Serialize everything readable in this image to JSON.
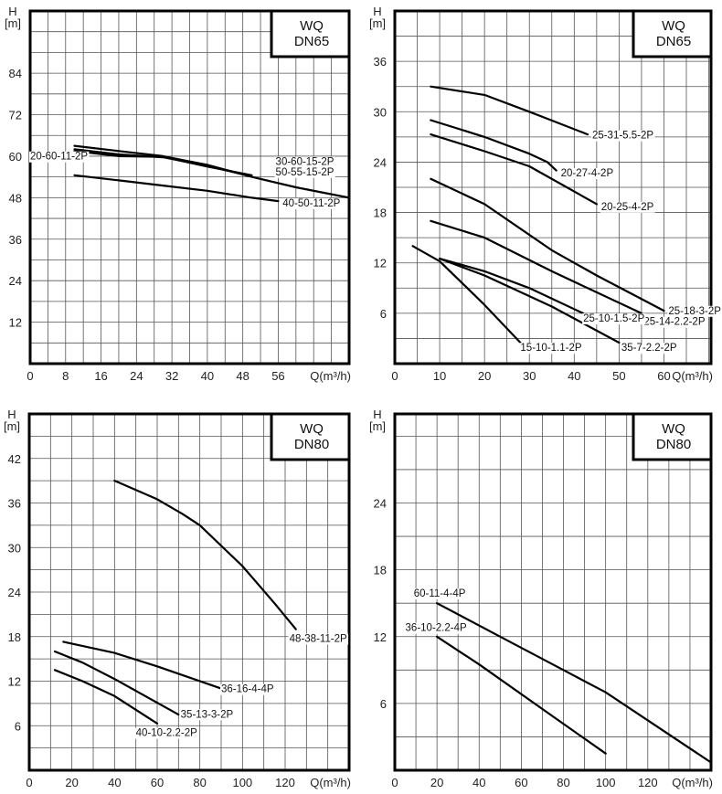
{
  "chart_data": [
    {
      "type": "line",
      "title": [
        "WQ",
        "DN65"
      ],
      "xlabel": "Q(m³/h)",
      "ylabel": [
        "H",
        "[m]"
      ],
      "xlim": [
        0,
        72
      ],
      "ylim": [
        0,
        102
      ],
      "x_grid_step": 4,
      "y_grid_step": 6,
      "xticks": [
        0,
        8,
        16,
        24,
        32,
        40,
        48,
        56
      ],
      "yticks": [
        12,
        24,
        36,
        48,
        60,
        72,
        84
      ],
      "grid": true,
      "series": [
        {
          "name": "30-60-15-2P",
          "points": [
            [
              10,
              63
            ],
            [
              20,
              61.5
            ],
            [
              30,
              60
            ],
            [
              40,
              57.5
            ],
            [
              50,
              54
            ],
            [
              60,
              51
            ],
            [
              72,
              48
            ]
          ],
          "label_at": [
            62,
            57.5
          ],
          "label_anchor": "middle"
        },
        {
          "name": "50-55-15-2P",
          "points": [
            [
              10,
              62
            ],
            [
              20,
              60.5
            ],
            [
              30,
              59.7
            ],
            [
              40,
              57.2
            ],
            [
              49.5,
              54.3
            ]
          ],
          "label_at": [
            62,
            54.5
          ],
          "label_anchor": "middle"
        },
        {
          "name": "20-60-11-2P",
          "points": [
            [
              10,
              61.5
            ],
            [
              20,
              60
            ],
            [
              30,
              59.8
            ],
            [
              40,
              57
            ],
            [
              50,
              54.5
            ]
          ],
          "label_at": [
            0,
            59
          ],
          "label_anchor": "start"
        },
        {
          "name": "40-50-11-2P",
          "points": [
            [
              10,
              54.5
            ],
            [
              20,
              53
            ],
            [
              30,
              51.5
            ],
            [
              40,
              50
            ],
            [
              50,
              48
            ],
            [
              56,
              47
            ]
          ],
          "label_at": [
            57,
            45.5
          ],
          "label_anchor": "start"
        }
      ]
    },
    {
      "type": "line",
      "title": [
        "WQ",
        "DN65"
      ],
      "xlabel": "Q(m³/h)",
      "ylabel": [
        "H",
        "[m]"
      ],
      "xlim": [
        0,
        70.5
      ],
      "ylim": [
        0,
        42
      ],
      "x_grid_step": 5,
      "y_grid_step": 3,
      "xticks": [
        0,
        10,
        20,
        30,
        40,
        50,
        60
      ],
      "yticks": [
        6,
        12,
        18,
        24,
        30,
        36
      ],
      "grid": true,
      "series": [
        {
          "name": "25-31-5.5-2P",
          "points": [
            [
              8,
              33
            ],
            [
              20,
              32
            ],
            [
              30,
              30
            ],
            [
              43,
              27.3
            ]
          ],
          "label_at": [
            44,
            26.8
          ],
          "label_anchor": "start"
        },
        {
          "name": "20-27-4-2P",
          "points": [
            [
              8,
              29
            ],
            [
              20,
              27
            ],
            [
              30,
              25
            ],
            [
              34,
              24
            ],
            [
              36,
              23
            ]
          ],
          "label_at": [
            37,
            22.3
          ],
          "label_anchor": "start"
        },
        {
          "name": "20-25-4-2P",
          "points": [
            [
              8,
              27.3
            ],
            [
              20,
              25.3
            ],
            [
              30,
              23.5
            ],
            [
              45,
              19
            ]
          ],
          "label_at": [
            46,
            18.3
          ],
          "label_anchor": "start"
        },
        {
          "name": "25-18-3-2P",
          "points": [
            [
              8,
              22
            ],
            [
              20,
              19
            ],
            [
              35,
              13.5
            ],
            [
              45,
              10.5
            ],
            [
              60,
              6.3
            ]
          ],
          "label_at": [
            61,
            5.9
          ],
          "label_anchor": "start"
        },
        {
          "name": "25-14-2.2-2P",
          "points": [
            [
              8,
              17
            ],
            [
              20,
              15
            ],
            [
              35,
              11
            ],
            [
              55,
              6
            ]
          ],
          "label_at": [
            55.5,
            4.6
          ],
          "label_anchor": "start"
        },
        {
          "name": "25-10-1.5-2P",
          "points": [
            [
              10,
              12.5
            ],
            [
              20,
              11
            ],
            [
              30,
              9
            ],
            [
              42,
              6
            ]
          ],
          "label_at": [
            42,
            5
          ],
          "label_anchor": "start"
        },
        {
          "name": "35-7-2.2-2P",
          "points": [
            [
              10,
              12.5
            ],
            [
              20,
              10.5
            ],
            [
              35,
              6.8
            ],
            [
              50,
              2.5
            ]
          ],
          "label_at": [
            50.5,
            1.5
          ],
          "label_anchor": "start"
        },
        {
          "name": "15-10-1.1-2P",
          "points": [
            [
              4,
              14
            ],
            [
              10,
              12.2
            ],
            [
              20,
              7
            ],
            [
              28,
              2.5
            ]
          ],
          "label_at": [
            28,
            1.5
          ],
          "label_anchor": "start"
        }
      ]
    },
    {
      "type": "line",
      "title": [
        "WQ",
        "DN80"
      ],
      "xlabel": "Q(m³/h)",
      "ylabel": [
        "H",
        "[m]"
      ],
      "xlim": [
        0,
        150
      ],
      "ylim": [
        0,
        48
      ],
      "x_grid_step": 10,
      "y_grid_step": 3,
      "xticks": [
        0,
        20,
        40,
        60,
        80,
        100,
        120
      ],
      "yticks": [
        6,
        12,
        18,
        24,
        30,
        36,
        42
      ],
      "grid": true,
      "series": [
        {
          "name": "48-38-11-2P",
          "points": [
            [
              40,
              39
            ],
            [
              60,
              36.5
            ],
            [
              72,
              34.5
            ],
            [
              80,
              33
            ],
            [
              100,
              27.5
            ],
            [
              115,
              22.5
            ],
            [
              125,
              19
            ]
          ],
          "label_at": [
            122,
            17.3
          ],
          "label_anchor": "start"
        },
        {
          "name": "36-16-4-4P",
          "points": [
            [
              16,
              17.3
            ],
            [
              40,
              15.8
            ],
            [
              60,
              14
            ],
            [
              90,
              11
            ]
          ],
          "label_at": [
            90,
            10.5
          ],
          "label_anchor": "start"
        },
        {
          "name": "35-13-3-2P",
          "points": [
            [
              12,
              16
            ],
            [
              25,
              14.5
            ],
            [
              40,
              12.3
            ],
            [
              70,
              7.5
            ]
          ],
          "label_at": [
            71,
            7.1
          ],
          "label_anchor": "start"
        },
        {
          "name": "40-10-2.2-2P",
          "points": [
            [
              12,
              13.5
            ],
            [
              25,
              12
            ],
            [
              40,
              10
            ],
            [
              60,
              6.3
            ]
          ],
          "label_at": [
            50,
            4.6
          ],
          "label_anchor": "start"
        }
      ]
    },
    {
      "type": "line",
      "title": [
        "WQ",
        "DN80"
      ],
      "xlabel": "Q(m³/h)",
      "ylabel": [
        "H",
        "[m]"
      ],
      "xlim": [
        0,
        150
      ],
      "ylim": [
        0,
        32
      ],
      "x_grid_step": 10,
      "y_grid_step": 3,
      "xticks": [
        0,
        20,
        40,
        60,
        80,
        100,
        120
      ],
      "yticks": [
        6,
        12,
        18,
        24
      ],
      "grid": true,
      "series": [
        {
          "name": "60-11-4-4P",
          "points": [
            [
              20,
              15
            ],
            [
              50,
              12
            ],
            [
              80,
              9
            ],
            [
              100,
              7
            ],
            [
              150,
              0.7
            ]
          ],
          "label_at": [
            9,
            15.6
          ],
          "label_anchor": "start"
        },
        {
          "name": "36-10-2.2-4P",
          "points": [
            [
              20,
              12
            ],
            [
              40,
              9.5
            ],
            [
              70,
              5.5
            ],
            [
              100,
              1.5
            ]
          ],
          "label_at": [
            5,
            12.5
          ],
          "label_anchor": "start"
        }
      ]
    }
  ]
}
